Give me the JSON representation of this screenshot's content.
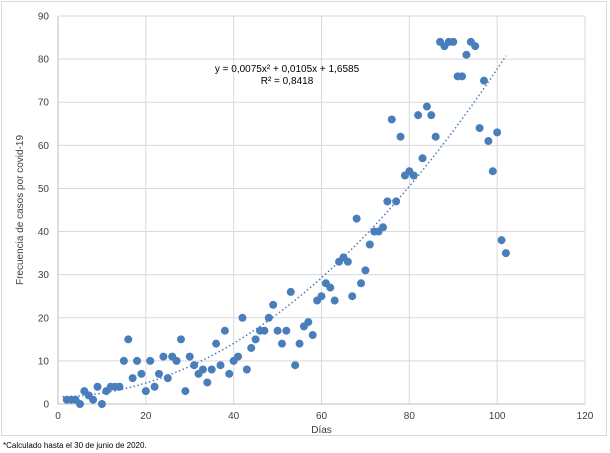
{
  "chart_data": {
    "type": "scatter",
    "xlabel": "Días",
    "ylabel": "Frecuencia de casos por covid-19",
    "xlim": [
      0,
      120
    ],
    "ylim": [
      0,
      90
    ],
    "xticks": [
      0,
      20,
      40,
      60,
      80,
      100,
      120
    ],
    "yticks": [
      0,
      10,
      20,
      30,
      40,
      50,
      60,
      70,
      80,
      90
    ],
    "grid": true,
    "point_color": "#4a7ebb",
    "trendline": {
      "type": "polynomial",
      "coefficients": {
        "a": 0.0075,
        "b": 0.0105,
        "c": 1.6585
      },
      "x_range": [
        1,
        102
      ],
      "equation_text": "y = 0,0075x² + 0,0105x + 1,6585",
      "r2_text": "R² = 0,8418",
      "color": "#4a7ebb",
      "style": "dotted"
    },
    "points": [
      [
        2,
        1
      ],
      [
        3,
        1
      ],
      [
        4,
        1
      ],
      [
        5,
        0
      ],
      [
        6,
        3
      ],
      [
        7,
        2
      ],
      [
        8,
        1
      ],
      [
        9,
        4
      ],
      [
        10,
        0
      ],
      [
        11,
        3
      ],
      [
        12,
        4
      ],
      [
        13,
        4
      ],
      [
        14,
        4
      ],
      [
        15,
        10
      ],
      [
        16,
        15
      ],
      [
        17,
        6
      ],
      [
        18,
        10
      ],
      [
        19,
        7
      ],
      [
        20,
        3
      ],
      [
        21,
        10
      ],
      [
        22,
        4
      ],
      [
        23,
        7
      ],
      [
        24,
        11
      ],
      [
        25,
        6
      ],
      [
        26,
        11
      ],
      [
        27,
        10
      ],
      [
        28,
        15
      ],
      [
        29,
        3
      ],
      [
        30,
        11
      ],
      [
        31,
        9
      ],
      [
        32,
        7
      ],
      [
        33,
        8
      ],
      [
        34,
        5
      ],
      [
        35,
        8
      ],
      [
        36,
        14
      ],
      [
        37,
        9
      ],
      [
        38,
        17
      ],
      [
        39,
        7
      ],
      [
        40,
        10
      ],
      [
        41,
        11
      ],
      [
        42,
        20
      ],
      [
        43,
        8
      ],
      [
        44,
        13
      ],
      [
        45,
        15
      ],
      [
        46,
        17
      ],
      [
        47,
        17
      ],
      [
        48,
        20
      ],
      [
        49,
        23
      ],
      [
        50,
        17
      ],
      [
        51,
        14
      ],
      [
        52,
        17
      ],
      [
        53,
        26
      ],
      [
        54,
        9
      ],
      [
        55,
        14
      ],
      [
        56,
        18
      ],
      [
        57,
        19
      ],
      [
        58,
        16
      ],
      [
        59,
        24
      ],
      [
        60,
        25
      ],
      [
        61,
        28
      ],
      [
        62,
        27
      ],
      [
        63,
        24
      ],
      [
        64,
        33
      ],
      [
        65,
        34
      ],
      [
        66,
        33
      ],
      [
        67,
        25
      ],
      [
        68,
        43
      ],
      [
        69,
        28
      ],
      [
        70,
        31
      ],
      [
        71,
        37
      ],
      [
        72,
        40
      ],
      [
        73,
        40
      ],
      [
        74,
        41
      ],
      [
        75,
        47
      ],
      [
        76,
        66
      ],
      [
        77,
        47
      ],
      [
        78,
        62
      ],
      [
        79,
        53
      ],
      [
        80,
        54
      ],
      [
        81,
        53
      ],
      [
        82,
        67
      ],
      [
        83,
        57
      ],
      [
        84,
        69
      ],
      [
        85,
        67
      ],
      [
        86,
        62
      ],
      [
        87,
        84
      ],
      [
        88,
        83
      ],
      [
        89,
        84
      ],
      [
        90,
        84
      ],
      [
        91,
        76
      ],
      [
        92,
        76
      ],
      [
        93,
        81
      ],
      [
        94,
        84
      ],
      [
        95,
        83
      ],
      [
        96,
        64
      ],
      [
        97,
        75
      ],
      [
        98,
        61
      ],
      [
        99,
        54
      ],
      [
        100,
        63
      ],
      [
        101,
        38
      ],
      [
        102,
        35
      ]
    ]
  },
  "footnote": "*Calculado hasta el 30 de junio de 2020."
}
